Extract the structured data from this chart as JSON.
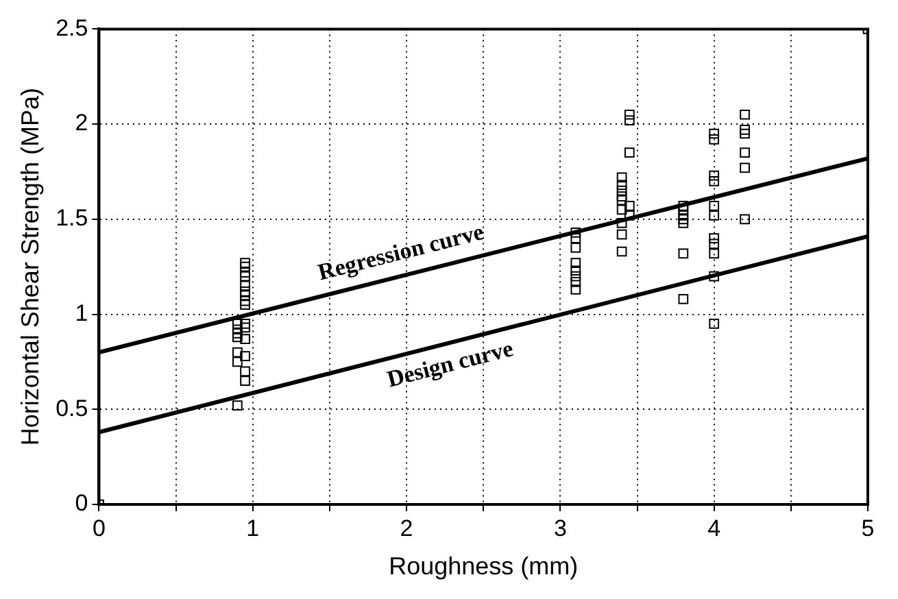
{
  "chart_data": {
    "type": "scatter",
    "xlabel": "Roughness (mm)",
    "ylabel": "Horizontal Shear Strength (MPa)",
    "xlim": [
      0,
      5
    ],
    "ylim": [
      0,
      2.5
    ],
    "xticks": [
      0,
      {
        "value": 0.5,
        "label": null
      },
      1,
      {
        "value": 1.5,
        "label": null
      },
      2,
      {
        "value": 2.5,
        "label": null
      },
      3,
      {
        "value": 3.5,
        "label": null
      },
      4,
      {
        "value": 4.5,
        "label": null
      },
      5
    ],
    "yticks": [
      0,
      0.5,
      1,
      1.5,
      2,
      2.5
    ],
    "grid": true,
    "legend": false,
    "marker": "square",
    "series": [
      {
        "color": "#000000",
        "x": [
          0.9,
          0.95,
          0.95,
          0.95,
          0.95,
          0.95,
          0.95,
          0.95,
          0.95,
          0.95,
          0.9,
          0.95,
          0.9,
          0.95,
          0.9,
          0.95,
          0.9,
          0.95,
          0.9,
          0.95,
          0.95,
          0.9,
          3.1,
          3.1,
          3.1,
          3.1,
          3.1,
          3.1,
          3.1,
          3.1,
          3.45,
          3.45,
          3.45,
          3.4,
          3.4,
          3.4,
          3.4,
          3.4,
          3.45,
          3.4,
          3.45,
          3.4,
          3.4,
          3.4,
          3.8,
          3.8,
          3.8,
          3.8,
          3.8,
          3.8,
          3.8,
          4.0,
          4.0,
          4.0,
          4.0,
          4.0,
          4.0,
          4.0,
          4.0,
          4.0,
          4.0,
          4.0,
          4.2,
          4.2,
          4.2,
          4.2,
          4.2,
          4.2,
          0,
          5
        ],
        "values": [
          0.9,
          1.27,
          1.25,
          1.22,
          1.2,
          1.15,
          1.12,
          1.1,
          1.07,
          1.05,
          0.95,
          0.95,
          0.92,
          0.93,
          0.88,
          0.87,
          0.8,
          0.78,
          0.75,
          0.7,
          0.65,
          0.52,
          1.43,
          1.4,
          1.35,
          1.27,
          1.23,
          1.2,
          1.17,
          1.13,
          2.05,
          2.02,
          1.85,
          1.72,
          1.68,
          1.65,
          1.62,
          1.6,
          1.57,
          1.55,
          1.52,
          1.48,
          1.42,
          1.33,
          1.57,
          1.55,
          1.52,
          1.5,
          1.48,
          1.32,
          1.08,
          1.95,
          1.92,
          1.73,
          1.7,
          1.57,
          1.52,
          1.4,
          1.37,
          1.32,
          1.2,
          0.95,
          2.05,
          1.97,
          1.95,
          1.85,
          1.77,
          1.5,
          0,
          2.5
        ]
      },
      {
        "type": "line",
        "color": "#000000",
        "marker": "none",
        "x": [
          0,
          5
        ],
        "values": [
          0.8,
          1.82
        ]
      },
      {
        "type": "line",
        "color": "#000000",
        "marker": "none",
        "x": [
          0,
          5
        ],
        "values": [
          0.38,
          1.41
        ]
      }
    ],
    "annotations": [
      "Regression curve",
      "Design curve"
    ]
  }
}
